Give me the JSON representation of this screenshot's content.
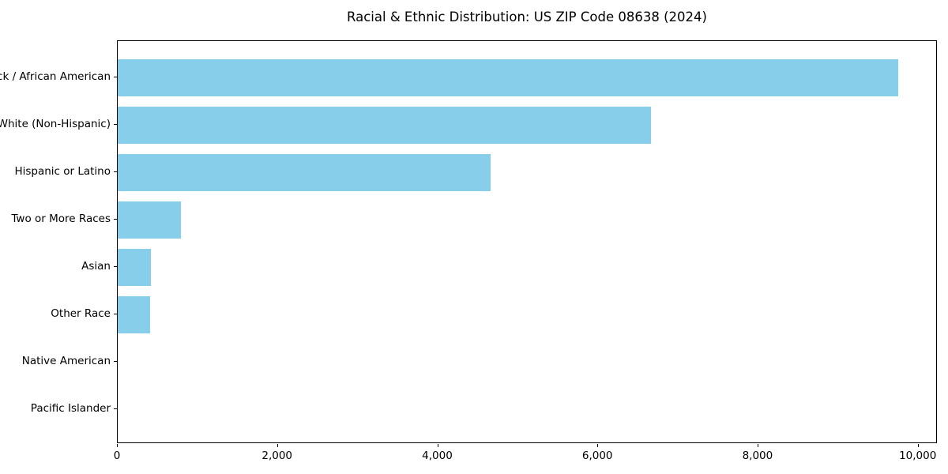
{
  "chart_data": {
    "type": "bar",
    "orientation": "horizontal",
    "title": "Racial & Ethnic Distribution: US ZIP Code 08638 (2024)",
    "categories": [
      "Black / African American",
      "White (Non-Hispanic)",
      "Hispanic or Latino",
      "Two or More Races",
      "Asian",
      "Other Race",
      "Native American",
      "Pacific Islander"
    ],
    "values": [
      9750,
      6660,
      4660,
      790,
      410,
      405,
      0,
      0
    ],
    "xlabel": "",
    "ylabel": "",
    "xlim": [
      0,
      10240
    ],
    "xticks": [
      0,
      2000,
      4000,
      6000,
      8000,
      10000
    ],
    "xtick_labels": [
      "0",
      "2,000",
      "4,000",
      "6,000",
      "8,000",
      "10,000"
    ],
    "bar_color": "#87CEEB",
    "background_color": "#FFFFFF",
    "axis_color": "#000000",
    "grid": false,
    "legend_position": "none"
  }
}
